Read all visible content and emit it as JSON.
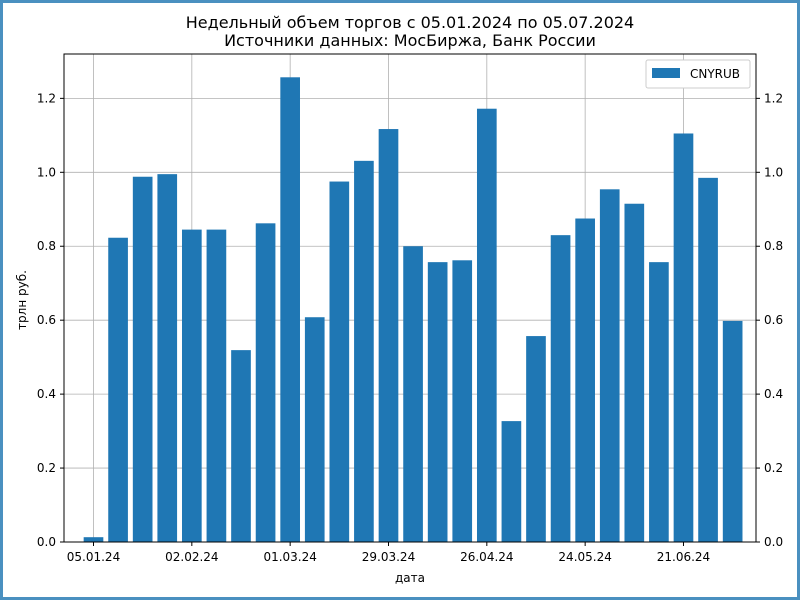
{
  "chart_data": {
    "type": "bar",
    "title": "Недельный объем торгов с 05.01.2024 по 05.07.2024",
    "subtitle": "Источники данных: МосБиржа, Банк России",
    "xlabel": "дата",
    "ylabel": "трлн руб.",
    "ylim": [
      0,
      1.32
    ],
    "yticks": [
      0.0,
      0.2,
      0.4,
      0.6,
      0.8,
      1.0,
      1.2
    ],
    "ytick_labels": [
      "0.0",
      "0.2",
      "0.4",
      "0.6",
      "0.8",
      "1.0",
      "1.2"
    ],
    "xticks": [
      "05.01.24",
      "02.02.24",
      "01.03.24",
      "29.03.24",
      "26.04.24",
      "24.05.24",
      "21.06.24"
    ],
    "xtick_positions": [
      0,
      4,
      8,
      12,
      16,
      20,
      24
    ],
    "x": [
      0,
      1,
      2,
      3,
      4,
      5,
      6,
      7,
      8,
      9,
      10,
      11,
      12,
      13,
      14,
      15,
      16,
      17,
      18,
      19,
      20,
      21,
      22,
      23,
      24,
      25,
      26
    ],
    "series": [
      {
        "name": "CNYRUB",
        "color": "#1f77b4",
        "values": [
          0.013,
          0.823,
          0.988,
          0.995,
          0.845,
          0.845,
          0.519,
          0.862,
          1.257,
          0.608,
          0.975,
          1.031,
          1.117,
          0.8,
          0.757,
          0.762,
          1.172,
          0.327,
          0.557,
          0.83,
          0.875,
          0.954,
          0.915,
          0.757,
          1.105,
          0.985,
          0.598
        ]
      }
    ],
    "grid": true,
    "legend": "top-right",
    "right_axis": true
  }
}
